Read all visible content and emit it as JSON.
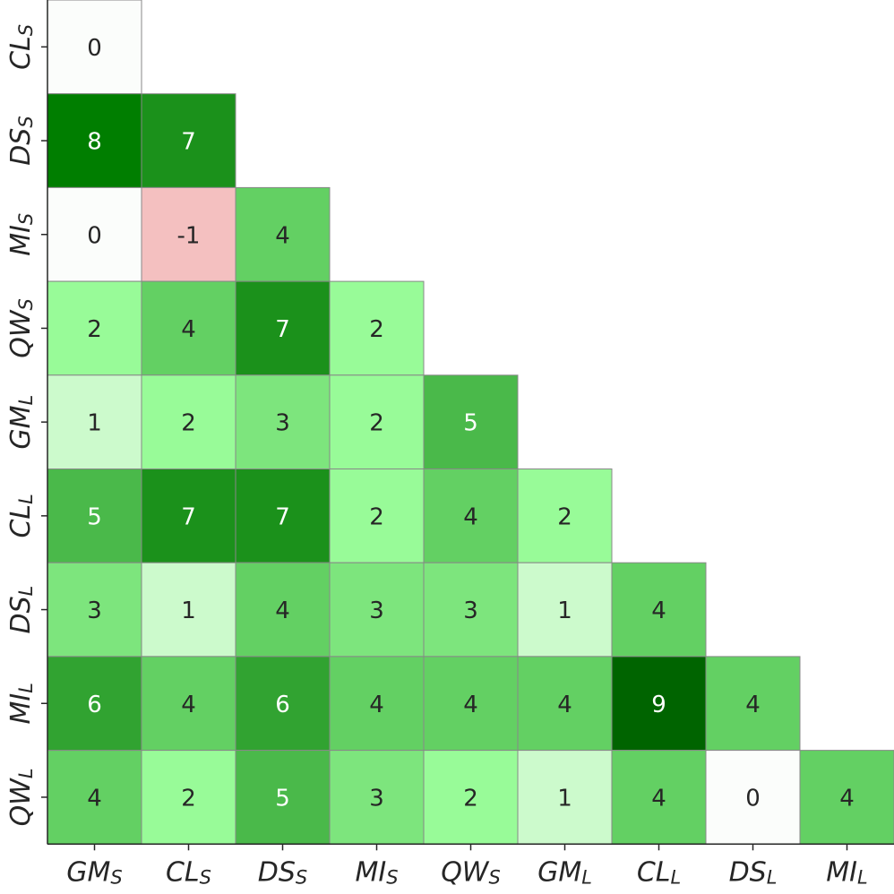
{
  "chart_data": {
    "type": "heatmap",
    "x_labels": [
      {
        "text": "GM",
        "sub": "S"
      },
      {
        "text": "CL",
        "sub": "S"
      },
      {
        "text": "DS",
        "sub": "S"
      },
      {
        "text": "MI",
        "sub": "S"
      },
      {
        "text": "QW",
        "sub": "S"
      },
      {
        "text": "GM",
        "sub": "L"
      },
      {
        "text": "CL",
        "sub": "L"
      },
      {
        "text": "DS",
        "sub": "L"
      },
      {
        "text": "MI",
        "sub": "L"
      }
    ],
    "y_labels": [
      {
        "text": "CL",
        "sub": "S"
      },
      {
        "text": "DS",
        "sub": "S"
      },
      {
        "text": "MI",
        "sub": "S"
      },
      {
        "text": "QW",
        "sub": "S"
      },
      {
        "text": "GM",
        "sub": "L"
      },
      {
        "text": "CL",
        "sub": "L"
      },
      {
        "text": "DS",
        "sub": "L"
      },
      {
        "text": "MI",
        "sub": "L"
      },
      {
        "text": "QW",
        "sub": "L"
      }
    ],
    "values": [
      [
        0
      ],
      [
        8,
        7
      ],
      [
        0,
        -1,
        4
      ],
      [
        2,
        4,
        7,
        2
      ],
      [
        1,
        2,
        3,
        2,
        5
      ],
      [
        5,
        7,
        7,
        2,
        4,
        2
      ],
      [
        3,
        1,
        4,
        3,
        3,
        1,
        4
      ],
      [
        6,
        4,
        6,
        4,
        4,
        4,
        9,
        4
      ],
      [
        4,
        2,
        5,
        3,
        2,
        1,
        4,
        0,
        4
      ]
    ],
    "colors": [
      [
        "#fbfdfb"
      ],
      [
        "#007e00",
        "#1b911b"
      ],
      [
        "#fbfdfb",
        "#f4c0c0",
        "#63d063"
      ],
      [
        "#98fb98",
        "#63d063",
        "#1b911b",
        "#98fb98"
      ],
      [
        "#ccfacc",
        "#98fb98",
        "#7de57d",
        "#98fb98",
        "#4ab94a"
      ],
      [
        "#4ab94a",
        "#1b911b",
        "#1b911b",
        "#98fb98",
        "#63d063",
        "#98fb98"
      ],
      [
        "#7de57d",
        "#ccfacc",
        "#63d063",
        "#7de57d",
        "#7de57d",
        "#ccfacc",
        "#63d063"
      ],
      [
        "#31a331",
        "#63d063",
        "#31a331",
        "#63d063",
        "#63d063",
        "#63d063",
        "#006400",
        "#63d063"
      ],
      [
        "#63d063",
        "#98fb98",
        "#4ab94a",
        "#7de57d",
        "#98fb98",
        "#ccfacc",
        "#63d063",
        "#fbfdfb",
        "#63d063"
      ]
    ]
  }
}
